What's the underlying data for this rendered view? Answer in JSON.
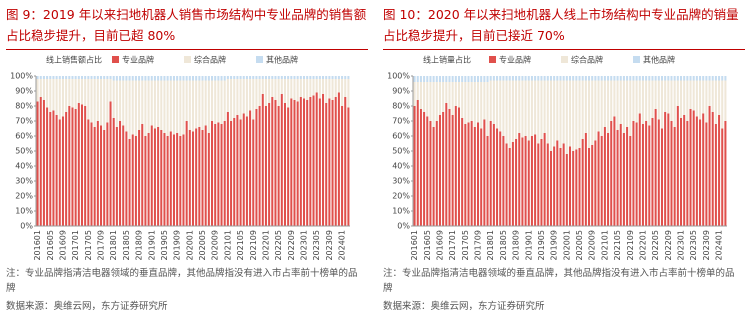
{
  "chart_data": [
    {
      "type": "bar",
      "stacked": true,
      "title": "图 9：2019 年以来扫地机器人销售市场结构中专业品牌的销售额占比稳步提升，目前已超 80%",
      "y_label": "线上销售额占比",
      "note": "注：专业品牌指清洁电器领域的垂直品牌，其他品牌指没有进入市占率前十榜单的品牌",
      "source": "数据来源：奥维云网，东方证券研究所",
      "categories": [
        "201601",
        null,
        null,
        null,
        "201605",
        null,
        null,
        null,
        "201609",
        null,
        null,
        null,
        "201701",
        null,
        null,
        null,
        "201705",
        null,
        null,
        null,
        "201709",
        null,
        null,
        null,
        "201801",
        null,
        null,
        null,
        "201805",
        null,
        null,
        null,
        "201809",
        null,
        null,
        null,
        "201901",
        null,
        null,
        null,
        "201905",
        null,
        null,
        null,
        "201909",
        null,
        null,
        null,
        "202001",
        null,
        null,
        null,
        "202005",
        null,
        null,
        null,
        "202009",
        null,
        null,
        null,
        "202101",
        null,
        null,
        null,
        "202105",
        null,
        null,
        null,
        "202109",
        null,
        null,
        null,
        "202201",
        null,
        null,
        null,
        "202205",
        null,
        null,
        null,
        "202209",
        null,
        null,
        null,
        "202301",
        null,
        null,
        null,
        "202305",
        null,
        null,
        null,
        "202309",
        null,
        null,
        null,
        "202401",
        null,
        null
      ],
      "series": [
        {
          "name": "专业品牌",
          "color": "#e0504c",
          "values": [
            83,
            86,
            84,
            79,
            76,
            77,
            74,
            71,
            73,
            76,
            80,
            79,
            78,
            82,
            81,
            80,
            71,
            69,
            66,
            70,
            67,
            64,
            69,
            83,
            72,
            66,
            70,
            67,
            63,
            58,
            61,
            60,
            64,
            68,
            60,
            62,
            67,
            65,
            66,
            64,
            62,
            60,
            63,
            61,
            62,
            60,
            61,
            70,
            64,
            63,
            65,
            66,
            64,
            67,
            62,
            70,
            68,
            69,
            68,
            70,
            76,
            70,
            72,
            74,
            71,
            75,
            73,
            77,
            71,
            78,
            80,
            88,
            80,
            82,
            86,
            84,
            80,
            88,
            82,
            79,
            85,
            84,
            83,
            86,
            85,
            84,
            86,
            87,
            89,
            85,
            88,
            82,
            85,
            84,
            86,
            89,
            80,
            86,
            79
          ]
        },
        {
          "name": "综合品牌",
          "color": "#efe7d8",
          "values": [
            15,
            12,
            14,
            19,
            22,
            21,
            24,
            27,
            25,
            22,
            18,
            19,
            20,
            16,
            17,
            18,
            27,
            29,
            32,
            28,
            31,
            34,
            29,
            15,
            25,
            31,
            27,
            30,
            34,
            39,
            36,
            37,
            33,
            29,
            37,
            35,
            30,
            32,
            31,
            33,
            35,
            37,
            34,
            36,
            35,
            37,
            36,
            27,
            33,
            34,
            32,
            31,
            33,
            30,
            35,
            27,
            29,
            28,
            29,
            27,
            22,
            28,
            26,
            24,
            27,
            23,
            25,
            21,
            27,
            20,
            18,
            10,
            18,
            16,
            12,
            14,
            18,
            10,
            16,
            19,
            13,
            14,
            15,
            12,
            13,
            14,
            12,
            11,
            9,
            13,
            10,
            16,
            13,
            14,
            12,
            9,
            18,
            12,
            19
          ]
        },
        {
          "name": "其他品牌",
          "color": "#c5dcf0",
          "values": [
            2,
            2,
            2,
            2,
            2,
            2,
            2,
            2,
            2,
            2,
            2,
            2,
            2,
            2,
            2,
            2,
            2,
            2,
            2,
            2,
            2,
            2,
            2,
            2,
            3,
            3,
            3,
            3,
            3,
            3,
            3,
            3,
            3,
            3,
            3,
            3,
            3,
            3,
            3,
            3,
            3,
            3,
            3,
            3,
            3,
            3,
            3,
            3,
            3,
            3,
            3,
            3,
            3,
            3,
            3,
            3,
            3,
            3,
            3,
            3,
            2,
            2,
            2,
            2,
            2,
            2,
            2,
            2,
            2,
            2,
            2,
            2,
            2,
            2,
            2,
            2,
            2,
            2,
            2,
            2,
            2,
            2,
            2,
            2,
            2,
            2,
            2,
            2,
            2,
            2,
            2,
            2,
            2,
            2,
            2,
            2,
            2,
            2,
            2
          ]
        }
      ],
      "ylim": [
        0,
        100
      ],
      "yticks": [
        {
          "value": 0,
          "label": "0%"
        },
        {
          "value": 10,
          "label": "10%"
        },
        {
          "value": 20,
          "label": "20%"
        },
        {
          "value": 30,
          "label": "30%"
        },
        {
          "value": 40,
          "label": "40%"
        },
        {
          "value": 50,
          "label": "50%"
        },
        {
          "value": 60,
          "label": "60%"
        },
        {
          "value": 70,
          "label": "70%"
        },
        {
          "value": 80,
          "label": "80%"
        },
        {
          "value": 90,
          "label": "90%"
        },
        {
          "value": 100,
          "label": "100%"
        }
      ]
    },
    {
      "type": "bar",
      "stacked": true,
      "title": "图 10：2020 年以来扫地机器人线上市场结构中专业品牌的销量占比稳步提升，目前已接近 70%",
      "y_label": "线上销量占比",
      "note": "注：专业品牌指清洁电器领域的垂直品牌，其他品牌指没有进入市占率前十榜单的品牌",
      "source": "数据来源：奥维云网，东方证券研究所",
      "categories": [
        "201601",
        null,
        null,
        null,
        "201605",
        null,
        null,
        null,
        "201609",
        null,
        null,
        null,
        "201701",
        null,
        null,
        null,
        "201705",
        null,
        null,
        null,
        "201709",
        null,
        null,
        null,
        "201801",
        null,
        null,
        null,
        "201805",
        null,
        null,
        null,
        "201809",
        null,
        null,
        null,
        "201901",
        null,
        null,
        null,
        "201905",
        null,
        null,
        null,
        "201909",
        null,
        null,
        null,
        "202001",
        null,
        null,
        null,
        "202005",
        null,
        null,
        null,
        "202009",
        null,
        null,
        null,
        "202101",
        null,
        null,
        null,
        "202105",
        null,
        null,
        null,
        "202109",
        null,
        null,
        null,
        "202201",
        null,
        null,
        null,
        "202205",
        null,
        null,
        null,
        "202209",
        null,
        null,
        null,
        "202301",
        null,
        null,
        null,
        "202305",
        null,
        null,
        null,
        "202309",
        null,
        null,
        null,
        "202401",
        null,
        null
      ],
      "series": [
        {
          "name": "专业品牌",
          "color": "#e0504c",
          "values": [
            80,
            84,
            78,
            76,
            73,
            70,
            66,
            70,
            74,
            76,
            82,
            78,
            74,
            80,
            79,
            72,
            68,
            69,
            70,
            66,
            69,
            65,
            71,
            60,
            70,
            68,
            65,
            63,
            60,
            55,
            52,
            56,
            58,
            62,
            59,
            60,
            57,
            60,
            61,
            55,
            58,
            62,
            55,
            50,
            53,
            57,
            52,
            55,
            48,
            53,
            50,
            51,
            52,
            58,
            62,
            52,
            54,
            57,
            63,
            60,
            66,
            62,
            70,
            73,
            64,
            68,
            62,
            66,
            60,
            70,
            69,
            75,
            68,
            70,
            67,
            72,
            78,
            71,
            65,
            76,
            75,
            70,
            66,
            80,
            72,
            74,
            70,
            78,
            77,
            73,
            71,
            75,
            69,
            80,
            76,
            68,
            74,
            65,
            70
          ]
        },
        {
          "name": "综合品牌",
          "color": "#efe7d8",
          "values": [
            16,
            12,
            18,
            20,
            23,
            26,
            30,
            26,
            22,
            20,
            14,
            18,
            22,
            16,
            17,
            24,
            28,
            27,
            26,
            30,
            27,
            31,
            25,
            36,
            27,
            29,
            32,
            34,
            37,
            42,
            45,
            41,
            39,
            35,
            38,
            37,
            40,
            37,
            36,
            42,
            39,
            35,
            42,
            47,
            44,
            40,
            45,
            42,
            49,
            44,
            47,
            46,
            45,
            39,
            35,
            45,
            43,
            40,
            34,
            37,
            31,
            35,
            27,
            24,
            33,
            29,
            35,
            31,
            37,
            27,
            28,
            22,
            29,
            27,
            30,
            25,
            19,
            26,
            32,
            21,
            22,
            27,
            31,
            17,
            25,
            23,
            27,
            19,
            20,
            24,
            26,
            22,
            28,
            17,
            21,
            29,
            23,
            32,
            27
          ]
        },
        {
          "name": "其他品牌",
          "color": "#c5dcf0",
          "values": [
            4,
            4,
            4,
            4,
            4,
            4,
            4,
            4,
            4,
            4,
            4,
            4,
            4,
            4,
            4,
            4,
            4,
            4,
            4,
            4,
            4,
            4,
            4,
            4,
            3,
            3,
            3,
            3,
            3,
            3,
            3,
            3,
            3,
            3,
            3,
            3,
            3,
            3,
            3,
            3,
            3,
            3,
            3,
            3,
            3,
            3,
            3,
            3,
            3,
            3,
            3,
            3,
            3,
            3,
            3,
            3,
            3,
            3,
            3,
            3,
            3,
            3,
            3,
            3,
            3,
            3,
            3,
            3,
            3,
            3,
            3,
            3,
            3,
            3,
            3,
            3,
            3,
            3,
            3,
            3,
            3,
            3,
            3,
            3,
            3,
            3,
            3,
            3,
            3,
            3,
            3,
            3,
            3,
            3,
            3,
            3,
            3,
            3,
            3
          ]
        }
      ],
      "ylim": [
        0,
        100
      ],
      "yticks": [
        {
          "value": 0,
          "label": "0%"
        },
        {
          "value": 10,
          "label": "10%"
        },
        {
          "value": 20,
          "label": "20%"
        },
        {
          "value": 30,
          "label": "30%"
        },
        {
          "value": 40,
          "label": "40%"
        },
        {
          "value": 50,
          "label": "50%"
        },
        {
          "value": 60,
          "label": "60%"
        },
        {
          "value": 70,
          "label": "70%"
        },
        {
          "value": 80,
          "label": "80%"
        },
        {
          "value": 90,
          "label": "90%"
        },
        {
          "value": 100,
          "label": "100%"
        }
      ]
    }
  ]
}
